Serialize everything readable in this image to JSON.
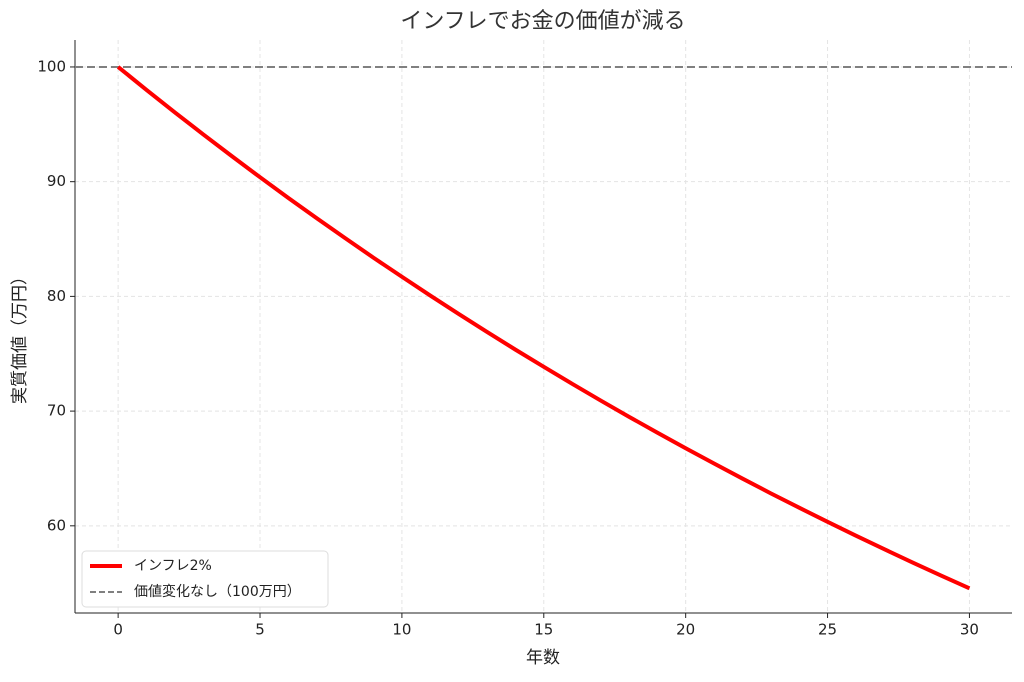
{
  "chart_data": {
    "type": "line",
    "title": "インフレでお金の価値が減る",
    "xlabel": "年数",
    "ylabel": "実質価値（万円）",
    "x": [
      0,
      1,
      2,
      3,
      4,
      5,
      6,
      7,
      8,
      9,
      10,
      11,
      12,
      13,
      14,
      15,
      16,
      17,
      18,
      19,
      20,
      21,
      22,
      23,
      24,
      25,
      26,
      27,
      28,
      29,
      30
    ],
    "series": [
      {
        "name": "インフレ2%",
        "color": "#ff0000",
        "values": [
          100,
          98,
          96.04,
          94.12,
          92.24,
          90.39,
          88.58,
          86.81,
          85.08,
          83.37,
          81.71,
          80.07,
          78.47,
          76.9,
          75.36,
          73.86,
          72.38,
          70.93,
          69.51,
          68.12,
          66.76,
          65.43,
          64.12,
          62.83,
          61.58,
          60.35,
          59.14,
          57.96,
          56.8,
          55.66,
          54.55
        ]
      }
    ],
    "reference_line": {
      "name": "価値変化なし（100万円）",
      "value": 100,
      "color": "#808080"
    },
    "xlim": [
      -1.52,
      31.5
    ],
    "ylim": [
      52.4,
      102.35
    ],
    "xticks": [
      0,
      5,
      10,
      15,
      20,
      25,
      30
    ],
    "yticks": [
      60,
      70,
      80,
      90,
      100
    ],
    "grid": true,
    "legend": "lower left"
  }
}
